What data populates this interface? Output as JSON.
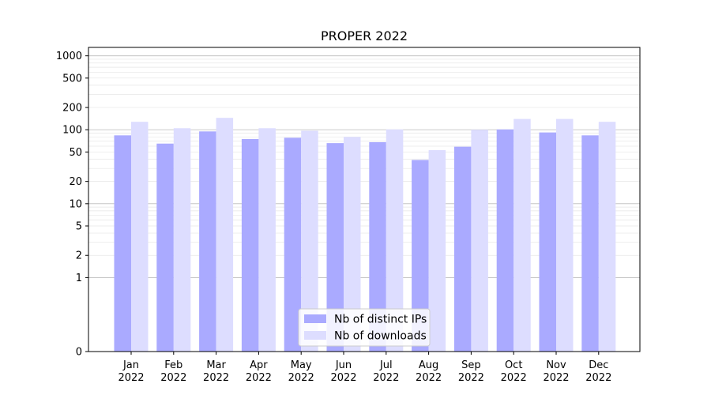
{
  "chart_data": {
    "type": "bar",
    "title": "PROPER 2022",
    "xlabel": "",
    "ylabel": "",
    "y_scale": "symlog",
    "ylim": [
      0,
      1300
    ],
    "y_ticks": [
      0,
      1,
      2,
      5,
      10,
      20,
      50,
      100,
      200,
      500,
      1000
    ],
    "categories": [
      {
        "month": "Jan",
        "year": "2022"
      },
      {
        "month": "Feb",
        "year": "2022"
      },
      {
        "month": "Mar",
        "year": "2022"
      },
      {
        "month": "Apr",
        "year": "2022"
      },
      {
        "month": "May",
        "year": "2022"
      },
      {
        "month": "Jun",
        "year": "2022"
      },
      {
        "month": "Jul",
        "year": "2022"
      },
      {
        "month": "Aug",
        "year": "2022"
      },
      {
        "month": "Sep",
        "year": "2022"
      },
      {
        "month": "Oct",
        "year": "2022"
      },
      {
        "month": "Nov",
        "year": "2022"
      },
      {
        "month": "Dec",
        "year": "2022"
      }
    ],
    "series": [
      {
        "name": "Nb of distinct IPs",
        "color": "#aaaaff",
        "values": [
          84,
          65,
          95,
          75,
          78,
          66,
          68,
          39,
          59,
          101,
          92,
          84
        ]
      },
      {
        "name": "Nb of downloads",
        "color": "#ddddff",
        "values": [
          128,
          105,
          145,
          105,
          97,
          80,
          101,
          53,
          100,
          140,
          140,
          128
        ]
      }
    ],
    "legend": "bottom-center",
    "grid": true
  }
}
